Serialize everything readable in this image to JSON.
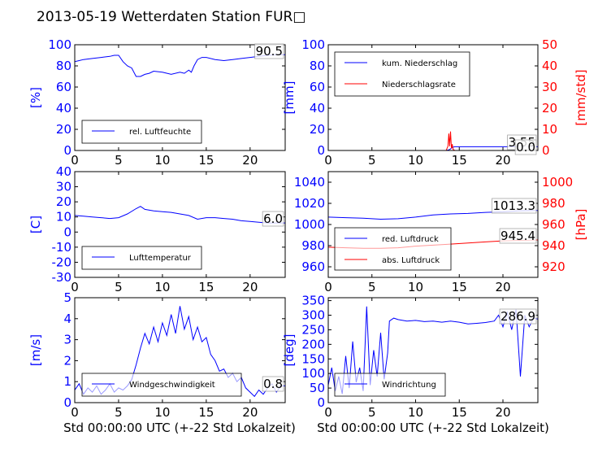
{
  "title": "2013-05-19 Wetterdaten Station FUR□",
  "colors": {
    "primary": "#0000ff",
    "secondary": "#ff0000",
    "axes": "#000000"
  },
  "xlabel": "Std 00:00:00 UTC (+-22 Std Lokalzeit)",
  "chart_data": [
    {
      "type": "line",
      "id": "humidity",
      "ylabel": "[%]",
      "ylim": [
        0,
        100
      ],
      "yticks": [
        0,
        20,
        40,
        60,
        80,
        100
      ],
      "xlim": [
        0,
        24
      ],
      "xticks": [
        0,
        5,
        10,
        15,
        20
      ],
      "last_value": "90.5",
      "series": [
        {
          "name": "rel. Luftfeuchte",
          "color": "#0000ff",
          "x": [
            0,
            0.5,
            1,
            2,
            3,
            4,
            4.5,
            5,
            5.5,
            6,
            6.5,
            7,
            7.5,
            8,
            8.5,
            9,
            10,
            11,
            12,
            12.5,
            13,
            13.3,
            13.6,
            14,
            14.5,
            15,
            16,
            17,
            18,
            19,
            20,
            21,
            22,
            23,
            24
          ],
          "y": [
            84,
            85,
            86,
            87,
            88,
            89,
            90,
            90,
            84,
            80,
            78,
            70,
            70,
            72,
            73,
            75,
            74,
            72,
            74,
            73,
            76,
            74,
            80,
            86,
            88,
            88,
            86,
            85,
            86,
            87,
            88,
            89,
            90,
            90.5,
            90.5
          ]
        }
      ]
    },
    {
      "type": "line",
      "id": "precipitation",
      "ylabel": "[mm]",
      "ylim": [
        0,
        100
      ],
      "yticks": [
        0,
        20,
        40,
        60,
        80,
        100
      ],
      "ylabel2": "[mm/std]",
      "ylim2": [
        0,
        50
      ],
      "yticks2": [
        0,
        10,
        20,
        30,
        40,
        50
      ],
      "xlim": [
        0,
        24
      ],
      "xticks": [
        0,
        5,
        10,
        15,
        20
      ],
      "last_value": "3.55",
      "last_value2": "0.0",
      "series": [
        {
          "name": "kum. Niederschlag",
          "color": "#0000ff",
          "axis": "left",
          "x": [
            0,
            13.5,
            13.8,
            14,
            14.2,
            14.5,
            15,
            20,
            24
          ],
          "y": [
            0,
            0,
            0.5,
            1.5,
            3,
            3.55,
            3.55,
            3.55,
            3.55
          ]
        },
        {
          "name": "Niederschlagsrate",
          "color": "#ff0000",
          "axis": "right",
          "x": [
            0,
            13.5,
            13.7,
            13.8,
            13.9,
            14.0,
            14.1,
            14.2,
            14.3,
            14.5,
            15,
            24
          ],
          "y": [
            0,
            0,
            2,
            8,
            2,
            9,
            1,
            3,
            0.5,
            0,
            0,
            0
          ]
        }
      ]
    },
    {
      "type": "line",
      "id": "temperature",
      "ylabel": "[C]",
      "ylim": [
        -30,
        40
      ],
      "yticks": [
        -30,
        -20,
        -10,
        0,
        10,
        20,
        30,
        40
      ],
      "xlim": [
        0,
        24
      ],
      "xticks": [
        0,
        5,
        10,
        15,
        20
      ],
      "last_value": "6.0",
      "series": [
        {
          "name": "Lufttemperatur",
          "color": "#0000ff",
          "x": [
            0,
            1,
            2,
            3,
            4,
            5,
            6,
            7,
            7.5,
            8,
            9,
            10,
            11,
            12,
            13,
            14,
            15,
            16,
            17,
            18,
            19,
            20,
            21,
            22,
            23,
            24
          ],
          "y": [
            11,
            10.5,
            10,
            9.5,
            9,
            9.5,
            12,
            15.5,
            17,
            15,
            14,
            13.5,
            13,
            12,
            11,
            8.5,
            9.5,
            9.5,
            9,
            8.5,
            7.5,
            7,
            6.5,
            6,
            6,
            6
          ]
        }
      ]
    },
    {
      "type": "line",
      "id": "pressure",
      "ylabel2": "[hPa]",
      "ylim": [
        950,
        1050
      ],
      "yticks": [
        960,
        980,
        1000,
        1020,
        1040
      ],
      "ylim2": [
        910,
        1010
      ],
      "yticks2": [
        920,
        940,
        960,
        980,
        1000
      ],
      "xlim": [
        0,
        24
      ],
      "xticks": [
        0,
        5,
        10,
        15,
        20
      ],
      "last_value": "1013.3",
      "last_value2": "945.4",
      "series": [
        {
          "name": "red. Luftdruck",
          "color": "#0000ff",
          "axis": "left",
          "x": [
            0,
            2,
            4,
            6,
            8,
            10,
            12,
            14,
            16,
            18,
            20,
            22,
            24
          ],
          "y": [
            1007,
            1006.5,
            1006,
            1005,
            1005.5,
            1007,
            1009,
            1010,
            1010.5,
            1011.5,
            1012,
            1013,
            1013.3
          ]
        },
        {
          "name": "abs. Luftdruck",
          "color": "#ff0000",
          "axis": "right",
          "x": [
            0,
            2,
            4,
            6,
            8,
            10,
            12,
            14,
            16,
            18,
            20,
            22,
            24
          ],
          "y": [
            938.5,
            938,
            937.5,
            937.5,
            938,
            939.5,
            940.5,
            941.5,
            942.5,
            943.5,
            944.5,
            945,
            945.4
          ]
        }
      ]
    },
    {
      "type": "line",
      "id": "windspeed",
      "ylabel": "[m/s]",
      "ylim": [
        0,
        5
      ],
      "yticks": [
        0,
        1,
        2,
        3,
        4,
        5
      ],
      "xlim": [
        0,
        24
      ],
      "xticks": [
        0,
        5,
        10,
        15,
        20
      ],
      "last_value": "0.8",
      "series": [
        {
          "name": "Windgeschwindigkeit",
          "color": "#0000ff",
          "x": [
            0,
            0.5,
            1,
            1.5,
            2,
            2.5,
            3,
            3.5,
            4,
            4.5,
            5,
            5.5,
            6,
            6.5,
            7,
            7.5,
            8,
            8.5,
            9,
            9.5,
            10,
            10.5,
            11,
            11.5,
            12,
            12.5,
            13,
            13.5,
            14,
            14.5,
            15,
            15.5,
            16,
            16.5,
            17,
            17.5,
            18,
            18.5,
            19,
            19.5,
            20,
            20.5,
            21,
            21.5,
            22,
            22.5,
            23,
            23.5,
            24
          ],
          "y": [
            0.6,
            0.9,
            0.4,
            0.7,
            0.5,
            0.8,
            0.4,
            0.6,
            0.9,
            0.5,
            0.7,
            0.6,
            0.8,
            1.1,
            1.8,
            2.6,
            3.3,
            2.8,
            3.6,
            2.9,
            3.8,
            3.2,
            4.2,
            3.3,
            4.6,
            3.5,
            4.1,
            3.0,
            3.6,
            2.9,
            3.1,
            2.3,
            2.0,
            1.5,
            1.6,
            1.2,
            1.4,
            1.0,
            1.2,
            0.7,
            0.5,
            0.3,
            0.6,
            0.4,
            0.7,
            0.9,
            0.5,
            0.8,
            0.8
          ]
        }
      ]
    },
    {
      "type": "line",
      "id": "winddirection",
      "ylabel": "[deg]",
      "ylim": [
        0,
        360
      ],
      "yticks": [
        0,
        50,
        100,
        150,
        200,
        250,
        300,
        350
      ],
      "xlim": [
        0,
        24
      ],
      "xticks": [
        0,
        5,
        10,
        15,
        20
      ],
      "last_value": "286.9",
      "series": [
        {
          "name": "Windrichtung",
          "color": "#0000ff",
          "x": [
            0,
            0.4,
            0.8,
            1.2,
            1.6,
            2,
            2.4,
            2.8,
            3.2,
            3.6,
            4,
            4.4,
            4.8,
            5.2,
            5.6,
            6,
            6.4,
            6.8,
            7,
            7.5,
            8,
            9,
            10,
            11,
            12,
            13,
            14,
            15,
            16,
            17,
            18,
            19,
            19.5,
            20,
            20.5,
            21,
            21.5,
            22,
            22.5,
            23,
            23.5,
            24
          ],
          "y": [
            60,
            120,
            40,
            90,
            30,
            160,
            50,
            210,
            70,
            120,
            40,
            330,
            60,
            180,
            90,
            240,
            80,
            170,
            280,
            290,
            285,
            280,
            282,
            278,
            280,
            276,
            280,
            276,
            270,
            272,
            275,
            280,
            300,
            260,
            310,
            250,
            320,
            90,
            300,
            260,
            290,
            287
          ]
        }
      ]
    }
  ]
}
